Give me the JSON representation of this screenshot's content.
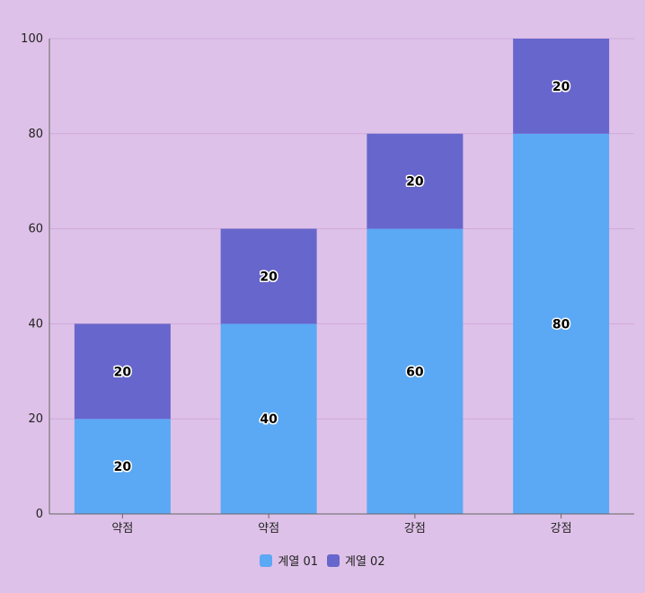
{
  "chart_data": {
    "type": "bar",
    "stacked": true,
    "categories": [
      "약점",
      "약점",
      "강점",
      "강점"
    ],
    "series": [
      {
        "name": "계열 01",
        "color": "#5ba8f5",
        "values": [
          20,
          40,
          60,
          80
        ]
      },
      {
        "name": "계열 02",
        "color": "#6766cc",
        "values": [
          20,
          20,
          20,
          20
        ]
      }
    ],
    "ylim": [
      0,
      100
    ],
    "yticks": [
      0,
      20,
      40,
      60,
      80,
      100
    ],
    "grid": true,
    "legend_position": "bottom",
    "colors": {
      "background": "#dec1e8",
      "gridline": "#cfa9db",
      "axis": "#666666"
    }
  }
}
